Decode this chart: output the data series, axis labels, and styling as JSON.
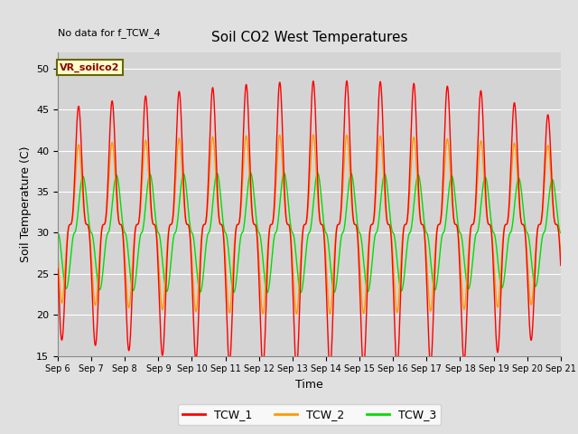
{
  "title": "Soil CO2 West Temperatures",
  "xlabel": "Time",
  "ylabel": "Soil Temperature (C)",
  "ylim": [
    15,
    52
  ],
  "xlim_days": [
    6,
    21
  ],
  "annotation": "No data for f_TCW_4",
  "legend_label": "VR_soilco2",
  "series_labels": [
    "TCW_1",
    "TCW_2",
    "TCW_3"
  ],
  "series_colors": [
    "#ff0000",
    "#ff9900",
    "#00dd00"
  ],
  "background_color": "#e0e0e0",
  "plot_bg_color": "#d4d4d4",
  "grid_color": "#ffffff",
  "xtick_labels": [
    "Sep 6",
    "Sep 7",
    "Sep 8",
    "Sep 9",
    "Sep 10",
    "Sep 11",
    "Sep 12",
    "Sep 13",
    "Sep 14",
    "Sep 15",
    "Sep 16",
    "Sep 17",
    "Sep 18",
    "Sep 19",
    "Sep 20",
    "Sep 21"
  ],
  "xtick_positions": [
    6,
    7,
    8,
    9,
    10,
    11,
    12,
    13,
    14,
    15,
    16,
    17,
    18,
    19,
    20,
    21
  ],
  "ytick_positions": [
    15,
    20,
    25,
    30,
    35,
    40,
    45,
    50
  ],
  "figsize": [
    6.4,
    4.8
  ],
  "dpi": 100
}
